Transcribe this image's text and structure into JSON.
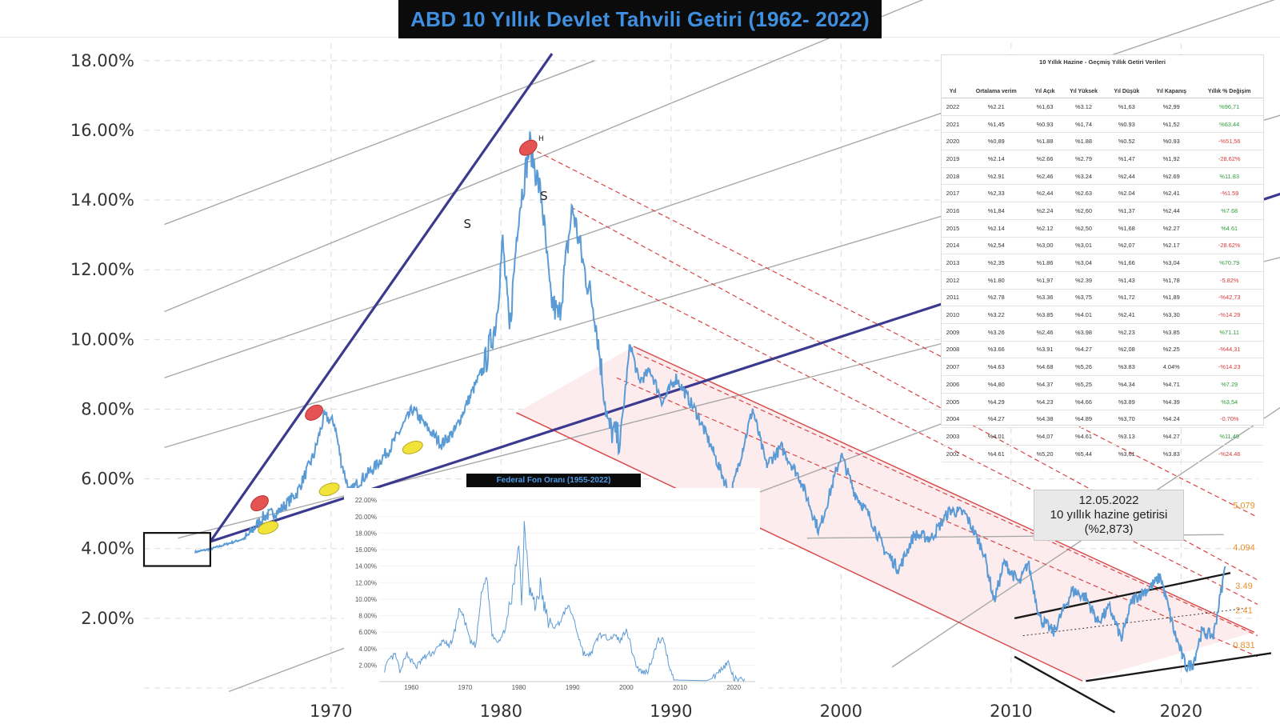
{
  "title": "ABD 10 Yıllık Devlet Tahvili Getiri (1962- 2022)",
  "chart_data": {
    "type": "line",
    "title": "ABD 10 Yıllık Devlet Tahvili Getiri (1962- 2022)",
    "x_ticks": [
      "1970",
      "1980",
      "1990",
      "2000",
      "2010",
      "2020"
    ],
    "y_ticks": [
      "2.00%",
      "4.00%",
      "6.00%",
      "8.00%",
      "10.00%",
      "12.00%",
      "14.00%",
      "16.00%",
      "18.00%"
    ],
    "xlim": [
      1959,
      2024.5
    ],
    "ylim": [
      0,
      18.5
    ],
    "grid": true,
    "series": [
      {
        "name": "",
        "color": "#5b9bd5",
        "points": [
          [
            1962,
            3.9
          ],
          [
            1963,
            4.0
          ],
          [
            1964,
            4.15
          ],
          [
            1965,
            4.3
          ],
          [
            1966,
            4.9
          ],
          [
            1967,
            5.1
          ],
          [
            1968,
            5.6
          ],
          [
            1969,
            6.7
          ],
          [
            1969.6,
            7.8
          ],
          [
            1970.2,
            7.6
          ],
          [
            1970.6,
            6.5
          ],
          [
            1971.1,
            5.6
          ],
          [
            1971.6,
            5.9
          ],
          [
            1972.5,
            6.3
          ],
          [
            1973.5,
            6.9
          ],
          [
            1974.2,
            7.5
          ],
          [
            1974.8,
            8.0
          ],
          [
            1975.6,
            7.5
          ],
          [
            1976.5,
            7.0
          ],
          [
            1977.3,
            7.4
          ],
          [
            1978.3,
            8.5
          ],
          [
            1979.0,
            9.2
          ],
          [
            1979.7,
            10.5
          ],
          [
            1980.1,
            12.8
          ],
          [
            1980.5,
            10.2
          ],
          [
            1981.0,
            13.5
          ],
          [
            1981.7,
            15.6
          ],
          [
            1982.4,
            14.0
          ],
          [
            1982.9,
            11.2
          ],
          [
            1983.4,
            10.6
          ],
          [
            1984.2,
            13.8
          ],
          [
            1984.9,
            12.0
          ],
          [
            1985.5,
            10.8
          ],
          [
            1986.3,
            7.5
          ],
          [
            1987.0,
            7.1
          ],
          [
            1987.6,
            9.9
          ],
          [
            1988.1,
            8.8
          ],
          [
            1988.8,
            9.1
          ],
          [
            1989.5,
            8.2
          ],
          [
            1990.3,
            8.9
          ],
          [
            1991.5,
            7.9
          ],
          [
            1992.3,
            7.0
          ],
          [
            1993.5,
            5.5
          ],
          [
            1994.8,
            8.0
          ],
          [
            1995.6,
            6.4
          ],
          [
            1996.5,
            6.9
          ],
          [
            1997.6,
            6.0
          ],
          [
            1998.7,
            4.5
          ],
          [
            2000.0,
            6.7
          ],
          [
            2000.8,
            5.6
          ],
          [
            2001.7,
            4.9
          ],
          [
            2002.5,
            4.0
          ],
          [
            2003.4,
            3.4
          ],
          [
            2004.3,
            4.4
          ],
          [
            2005.3,
            4.3
          ],
          [
            2006.4,
            5.1
          ],
          [
            2007.3,
            5.0
          ],
          [
            2008.4,
            3.9
          ],
          [
            2009.0,
            2.5
          ],
          [
            2009.6,
            3.6
          ],
          [
            2010.5,
            3.0
          ],
          [
            2011.0,
            3.6
          ],
          [
            2011.7,
            2.0
          ],
          [
            2012.5,
            1.6
          ],
          [
            2013.6,
            2.8
          ],
          [
            2014.4,
            2.6
          ],
          [
            2015.1,
            1.9
          ],
          [
            2015.8,
            2.3
          ],
          [
            2016.5,
            1.4
          ],
          [
            2017.1,
            2.5
          ],
          [
            2018.2,
            2.9
          ],
          [
            2018.8,
            3.2
          ],
          [
            2019.6,
            1.6
          ],
          [
            2020.3,
            0.6
          ],
          [
            2020.7,
            0.7
          ],
          [
            2021.2,
            1.6
          ],
          [
            2021.9,
            1.5
          ],
          [
            2022.4,
            2.9
          ],
          [
            2022.6,
            3.49
          ]
        ]
      }
    ],
    "annotations": [
      "S",
      "S",
      "H"
    ],
    "levels": [
      "5.079",
      "4.094",
      "3.49",
      "2.41",
      "0.831"
    ],
    "note": [
      "12.05.2022",
      "10 yıllık hazine getirisi",
      "(%2,873)"
    ]
  },
  "inset_chart": {
    "type": "line",
    "title": "Federal Fon Oranı (1955-2022)",
    "x_ticks": [
      "1960",
      "1970",
      "1980",
      "1990",
      "2000",
      "2010",
      "2020"
    ],
    "y_ticks": [
      "2.00%",
      "4.00%",
      "6.00%",
      "8.00%",
      "10.00%",
      "12.00%",
      "14.00%",
      "16.00%",
      "18.00%",
      "20.00%",
      "22.00%"
    ],
    "xlim": [
      1954,
      2024
    ],
    "ylim": [
      0,
      22.5
    ],
    "points": [
      [
        1955,
        1.5
      ],
      [
        1956,
        2.7
      ],
      [
        1957,
        3.2
      ],
      [
        1958,
        1.0
      ],
      [
        1959,
        3.5
      ],
      [
        1960,
        2.5
      ],
      [
        1961,
        1.8
      ],
      [
        1962,
        2.7
      ],
      [
        1963,
        3.2
      ],
      [
        1964,
        3.5
      ],
      [
        1965,
        4.1
      ],
      [
        1966,
        5.1
      ],
      [
        1967,
        4.0
      ],
      [
        1968,
        6.0
      ],
      [
        1969,
        9.0
      ],
      [
        1970,
        7.2
      ],
      [
        1971,
        4.7
      ],
      [
        1972,
        4.4
      ],
      [
        1973,
        10.5
      ],
      [
        1974,
        12.9
      ],
      [
        1975,
        5.8
      ],
      [
        1976,
        5.0
      ],
      [
        1977,
        5.5
      ],
      [
        1978,
        7.9
      ],
      [
        1979,
        11.2
      ],
      [
        1980,
        17.6
      ],
      [
        1980.5,
        9.0
      ],
      [
        1981,
        19.1
      ],
      [
        1981.5,
        16.0
      ],
      [
        1982,
        11.5
      ],
      [
        1983,
        9.0
      ],
      [
        1984,
        11.6
      ],
      [
        1985,
        8.1
      ],
      [
        1986,
        6.8
      ],
      [
        1987,
        6.7
      ],
      [
        1988,
        7.6
      ],
      [
        1989,
        9.2
      ],
      [
        1990,
        8.1
      ],
      [
        1991,
        5.7
      ],
      [
        1992,
        3.5
      ],
      [
        1993,
        3.0
      ],
      [
        1994,
        4.2
      ],
      [
        1995,
        5.8
      ],
      [
        1996,
        5.3
      ],
      [
        1997,
        5.5
      ],
      [
        1998,
        5.4
      ],
      [
        1999,
        5.0
      ],
      [
        2000,
        6.5
      ],
      [
        2001,
        3.9
      ],
      [
        2002,
        1.7
      ],
      [
        2003,
        1.1
      ],
      [
        2004,
        1.3
      ],
      [
        2005,
        3.2
      ],
      [
        2006,
        5.0
      ],
      [
        2007,
        5.0
      ],
      [
        2008,
        1.9
      ],
      [
        2009,
        0.2
      ],
      [
        2012,
        0.15
      ],
      [
        2015,
        0.12
      ],
      [
        2016,
        0.4
      ],
      [
        2017,
        1.0
      ],
      [
        2018,
        1.8
      ],
      [
        2019,
        2.3
      ],
      [
        2020,
        0.4
      ],
      [
        2021,
        0.1
      ],
      [
        2022,
        0.33
      ]
    ]
  },
  "table": {
    "title": "10 Yıllık Hazine - Geçmiş Yıllık Getiri Verileri",
    "headers": [
      "Yıl",
      "Ortalama verim",
      "Yıl Açık",
      "Yıl Yüksek",
      "Yıl Düşük",
      "Yıl Kapanış",
      "Yıllık % Değişim"
    ],
    "rows": [
      [
        "2022",
        "%2.21",
        "%1,63",
        "%3.12",
        "%1,63",
        "%2,99",
        "%96,71"
      ],
      [
        "2021",
        "%1,45",
        "%0.93",
        "%1,74",
        "%0.93",
        "%1,52",
        "%63.44"
      ],
      [
        "2020",
        "%0,89",
        "%1.88",
        "%1.88",
        "%0.52",
        "%0.93",
        "-%51,56"
      ],
      [
        "2019",
        "%2.14",
        "%2.66",
        "%2.79",
        "%1,47",
        "%1,92",
        "-28.62%"
      ],
      [
        "2018",
        "%2.91",
        "%2,46",
        "%3.24",
        "%2,44",
        "%2.69",
        "%11.83"
      ],
      [
        "2017",
        "%2,33",
        "%2,44",
        "%2.63",
        "%2.04",
        "%2,41",
        "-%1.59"
      ],
      [
        "2016",
        "%1,84",
        "%2.24",
        "%2,60",
        "%1,37",
        "%2,44",
        "%7.68"
      ],
      [
        "2015",
        "%2.14",
        "%2.12",
        "%2,50",
        "%1,68",
        "%2.27",
        "%4.61"
      ],
      [
        "2014",
        "%2,54",
        "%3,00",
        "%3,01",
        "%2,07",
        "%2.17",
        "-28.62%"
      ],
      [
        "2013",
        "%2,35",
        "%1.86",
        "%3,04",
        "%1,66",
        "%3,04",
        "%70.79"
      ],
      [
        "2012",
        "%1.80",
        "%1,97",
        "%2.39",
        "%1,43",
        "%1,78",
        "-5.82%"
      ],
      [
        "2011",
        "%2.78",
        "%3.36",
        "%3,75",
        "%1,72",
        "%1,89",
        "-%42,73"
      ],
      [
        "2010",
        "%3.22",
        "%3.85",
        "%4.01",
        "%2,41",
        "%3,30",
        "-%14.29"
      ],
      [
        "2009",
        "%3.26",
        "%2,46",
        "%3.98",
        "%2.23",
        "%3.85",
        "%71.11"
      ],
      [
        "2008",
        "%3.66",
        "%3.91",
        "%4.27",
        "%2,08",
        "%2.25",
        "-%44,31"
      ],
      [
        "2007",
        "%4.63",
        "%4.68",
        "%5,26",
        "%3.83",
        "4.04%",
        "-%14.23"
      ],
      [
        "2006",
        "%4,80",
        "%4.37",
        "%5,25",
        "%4.34",
        "%4.71",
        "%7.29"
      ],
      [
        "2005",
        "%4.29",
        "%4.23",
        "%4.66",
        "%3.89",
        "%4.39",
        "%3,54"
      ],
      [
        "2004",
        "%4.27",
        "%4.38",
        "%4.89",
        "%3,70",
        "%4.24",
        "-0.70%"
      ],
      [
        "2003",
        "%4.01",
        "%4,07",
        "%4.61",
        "%3.13",
        "%4.27",
        "%11,49"
      ],
      [
        "2002",
        "%4.61",
        "%5,20",
        "%5,44",
        "%3,61",
        "%3.83",
        "-%24.46"
      ]
    ]
  }
}
